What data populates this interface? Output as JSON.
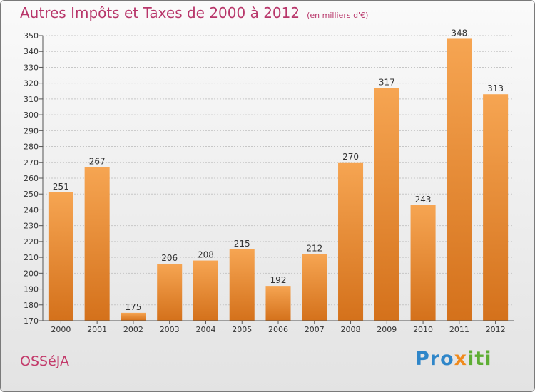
{
  "title": "Autres Impôts et Taxes de 2000 à 2012",
  "unit_note": "(en milliers d'€)",
  "commune": "OSSéJA",
  "brand": {
    "parts": [
      "Pro",
      "x",
      "iti"
    ],
    "colors": [
      "#2f86c9",
      "#f08a1c",
      "#5eae34"
    ]
  },
  "colors": {
    "title": "#b8366a",
    "bar_top": "#f6a552",
    "bar_bottom": "#d4711b"
  },
  "chart_data": {
    "type": "bar",
    "categories": [
      "2000",
      "2001",
      "2002",
      "2003",
      "2004",
      "2005",
      "2006",
      "2007",
      "2008",
      "2009",
      "2010",
      "2011",
      "2012"
    ],
    "values": [
      251,
      267,
      175,
      206,
      208,
      215,
      192,
      212,
      270,
      317,
      243,
      348,
      313
    ],
    "ylim": [
      170,
      350
    ],
    "yticks": [
      170,
      180,
      190,
      200,
      210,
      220,
      230,
      240,
      250,
      260,
      270,
      280,
      290,
      300,
      310,
      320,
      330,
      340,
      350
    ],
    "grid": true,
    "data_labels": true
  }
}
